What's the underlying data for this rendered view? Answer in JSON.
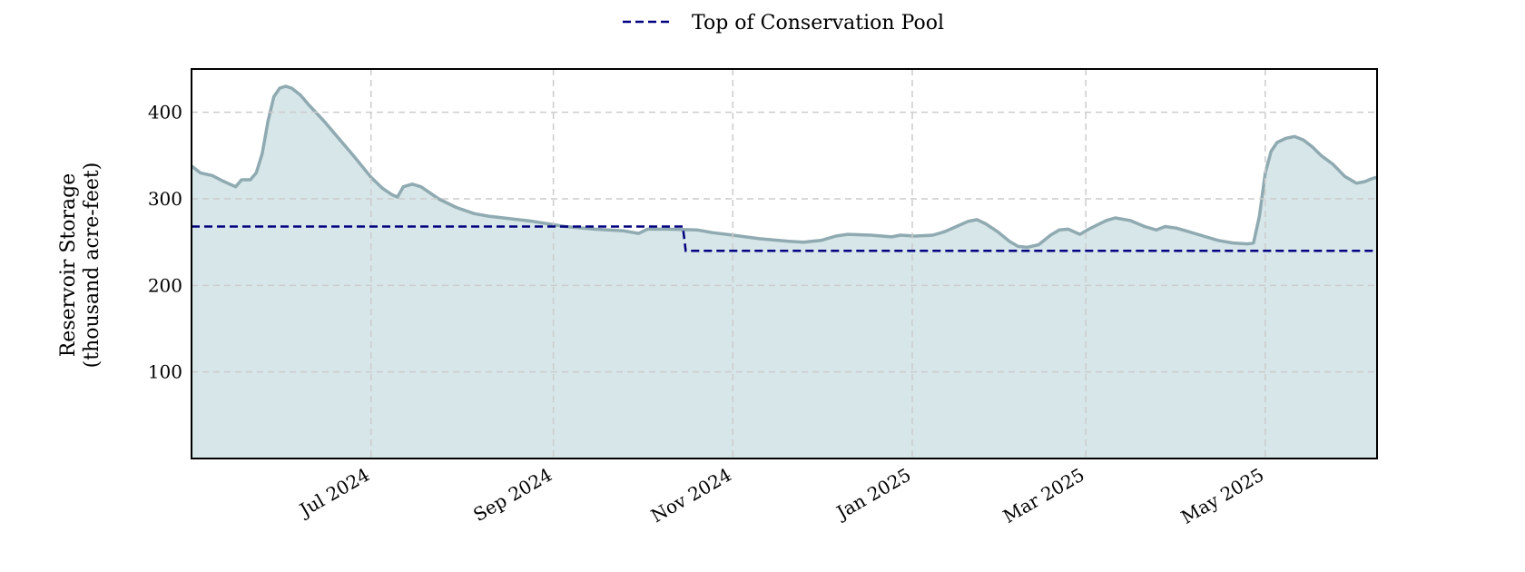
{
  "chart_data": {
    "type": "area",
    "title": "",
    "xlabel": "",
    "ylabel_lines": [
      "Reservoir Storage",
      "(thousand acre-feet)"
    ],
    "xlim": [
      "2024-05-01",
      "2025-06-08"
    ],
    "ylim": [
      0,
      450
    ],
    "y_ticks": [
      100,
      200,
      300,
      400
    ],
    "x_ticks": [
      {
        "date": "2024-07-01",
        "label": "Jul 2024"
      },
      {
        "date": "2024-09-01",
        "label": "Sep 2024"
      },
      {
        "date": "2024-11-01",
        "label": "Nov 2024"
      },
      {
        "date": "2025-01-01",
        "label": "Jan 2025"
      },
      {
        "date": "2025-03-01",
        "label": "Mar 2025"
      },
      {
        "date": "2025-05-01",
        "label": "May 2025"
      }
    ],
    "grid": true,
    "legend_position": "top-center",
    "legend": [
      {
        "label": "Top of Conservation Pool",
        "style": "dashed",
        "color": "#000080"
      }
    ],
    "colors": {
      "storage_line": "#8faab1",
      "storage_fill": "#d7e6e8",
      "pool_line": "#000080",
      "grid": "#cccccc"
    },
    "series": [
      {
        "id": "storage",
        "style": "line-with-fill",
        "points": [
          [
            "2024-05-01",
            338
          ],
          [
            "2024-05-04",
            330
          ],
          [
            "2024-05-08",
            327
          ],
          [
            "2024-05-12",
            320
          ],
          [
            "2024-05-16",
            314
          ],
          [
            "2024-05-18",
            322
          ],
          [
            "2024-05-21",
            322
          ],
          [
            "2024-05-23",
            330
          ],
          [
            "2024-05-25",
            352
          ],
          [
            "2024-05-27",
            390
          ],
          [
            "2024-05-29",
            418
          ],
          [
            "2024-05-31",
            428
          ],
          [
            "2024-06-02",
            430
          ],
          [
            "2024-06-04",
            428
          ],
          [
            "2024-06-07",
            420
          ],
          [
            "2024-06-10",
            408
          ],
          [
            "2024-06-15",
            390
          ],
          [
            "2024-06-20",
            370
          ],
          [
            "2024-06-25",
            350
          ],
          [
            "2024-07-01",
            325
          ],
          [
            "2024-07-05",
            312
          ],
          [
            "2024-07-08",
            305
          ],
          [
            "2024-07-10",
            302
          ],
          [
            "2024-07-12",
            314
          ],
          [
            "2024-07-15",
            317
          ],
          [
            "2024-07-18",
            314
          ],
          [
            "2024-07-24",
            300
          ],
          [
            "2024-07-30",
            290
          ],
          [
            "2024-08-05",
            283
          ],
          [
            "2024-08-10",
            280
          ],
          [
            "2024-08-15",
            278
          ],
          [
            "2024-08-25",
            274
          ],
          [
            "2024-09-05",
            268
          ],
          [
            "2024-09-15",
            265
          ],
          [
            "2024-09-25",
            263
          ],
          [
            "2024-09-30",
            260
          ],
          [
            "2024-10-03",
            265
          ],
          [
            "2024-10-10",
            265
          ],
          [
            "2024-10-20",
            264
          ],
          [
            "2024-10-25",
            261
          ],
          [
            "2024-11-01",
            258
          ],
          [
            "2024-11-10",
            254
          ],
          [
            "2024-11-20",
            251
          ],
          [
            "2024-11-25",
            250
          ],
          [
            "2024-12-01",
            252
          ],
          [
            "2024-12-06",
            257
          ],
          [
            "2024-12-10",
            259
          ],
          [
            "2024-12-18",
            258
          ],
          [
            "2024-12-25",
            256
          ],
          [
            "2024-12-28",
            258
          ],
          [
            "2025-01-02",
            257
          ],
          [
            "2025-01-08",
            258
          ],
          [
            "2025-01-12",
            262
          ],
          [
            "2025-01-16",
            268
          ],
          [
            "2025-01-20",
            274
          ],
          [
            "2025-01-23",
            276
          ],
          [
            "2025-01-26",
            271
          ],
          [
            "2025-01-30",
            262
          ],
          [
            "2025-02-03",
            251
          ],
          [
            "2025-02-06",
            245
          ],
          [
            "2025-02-09",
            244
          ],
          [
            "2025-02-13",
            247
          ],
          [
            "2025-02-17",
            258
          ],
          [
            "2025-02-20",
            264
          ],
          [
            "2025-02-23",
            265
          ],
          [
            "2025-02-27",
            259
          ],
          [
            "2025-03-02",
            265
          ],
          [
            "2025-03-05",
            270
          ],
          [
            "2025-03-08",
            275
          ],
          [
            "2025-03-11",
            278
          ],
          [
            "2025-03-16",
            275
          ],
          [
            "2025-03-21",
            268
          ],
          [
            "2025-03-25",
            264
          ],
          [
            "2025-03-28",
            268
          ],
          [
            "2025-04-01",
            266
          ],
          [
            "2025-04-05",
            262
          ],
          [
            "2025-04-10",
            257
          ],
          [
            "2025-04-15",
            252
          ],
          [
            "2025-04-20",
            249
          ],
          [
            "2025-04-25",
            248
          ],
          [
            "2025-04-27",
            249
          ],
          [
            "2025-04-29",
            280
          ],
          [
            "2025-05-01",
            330
          ],
          [
            "2025-05-03",
            355
          ],
          [
            "2025-05-05",
            365
          ],
          [
            "2025-05-08",
            370
          ],
          [
            "2025-05-11",
            372
          ],
          [
            "2025-05-14",
            368
          ],
          [
            "2025-05-17",
            360
          ],
          [
            "2025-05-20",
            350
          ],
          [
            "2025-05-24",
            340
          ],
          [
            "2025-05-28",
            326
          ],
          [
            "2025-06-01",
            318
          ],
          [
            "2025-06-04",
            320
          ],
          [
            "2025-06-06",
            323
          ],
          [
            "2025-06-08",
            325
          ]
        ]
      },
      {
        "id": "pool",
        "name": "Top of Conservation Pool",
        "style": "dashed-line",
        "points": [
          [
            "2024-05-01",
            268
          ],
          [
            "2024-10-15",
            268
          ],
          [
            "2024-10-16",
            240
          ],
          [
            "2025-06-08",
            240
          ]
        ]
      }
    ]
  }
}
